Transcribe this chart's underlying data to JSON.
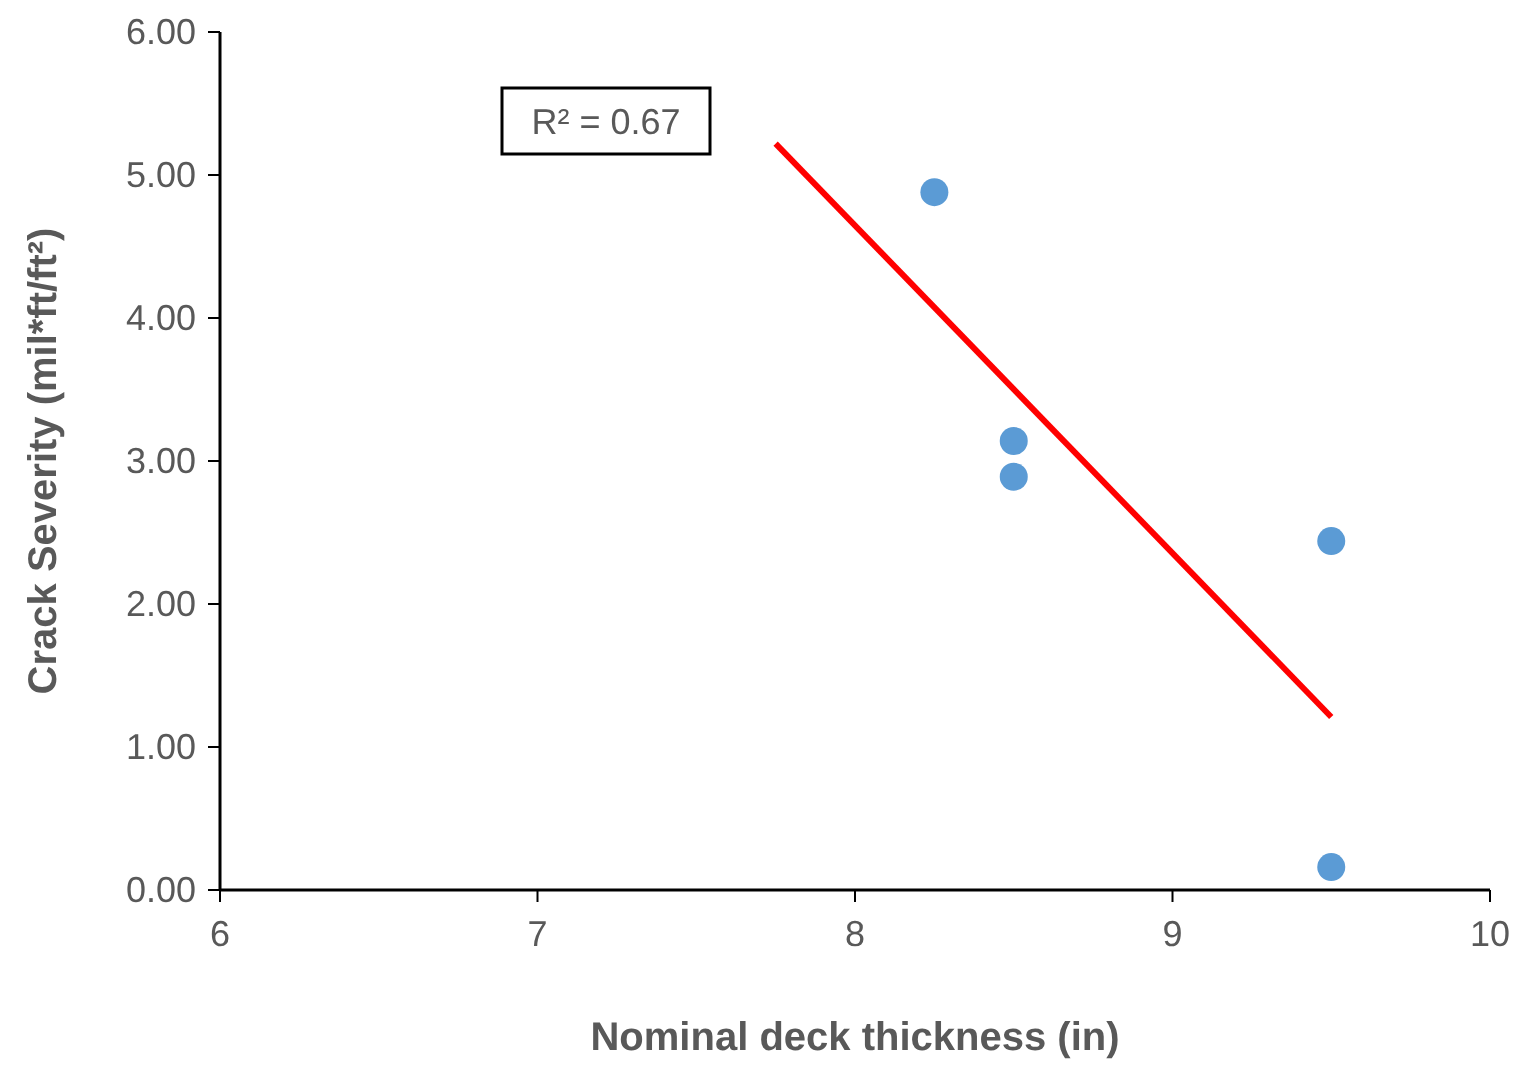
{
  "chart_data": {
    "type": "scatter",
    "xlabel": "Nominal deck thickness (in)",
    "ylabel": "Crack Severity (mil*ft/ft²)",
    "xlim": [
      6,
      10
    ],
    "xticks": [
      6,
      7,
      8,
      9,
      10
    ],
    "ylim": [
      0,
      6
    ],
    "yticks": [
      {
        "value": 0,
        "label": "0.00"
      },
      {
        "value": 1,
        "label": "1.00"
      },
      {
        "value": 2,
        "label": "2.00"
      },
      {
        "value": 3,
        "label": "3.00"
      },
      {
        "value": 4,
        "label": "4.00"
      },
      {
        "value": 5,
        "label": "5.00"
      },
      {
        "value": 6,
        "label": "6.00"
      }
    ],
    "grid": false,
    "series": [
      {
        "color": "#5b9bd5",
        "marker": "circle",
        "x": [
          8.25,
          8.5,
          8.5,
          9.5,
          9.5
        ],
        "values": [
          4.88,
          3.14,
          2.89,
          2.44,
          0.16
        ]
      },
      {
        "type": "line",
        "color": "#ff0000",
        "x": [
          7.75,
          9.5
        ],
        "values": [
          5.22,
          1.21
        ]
      }
    ],
    "annotations": [
      "R² = 0.67"
    ]
  }
}
